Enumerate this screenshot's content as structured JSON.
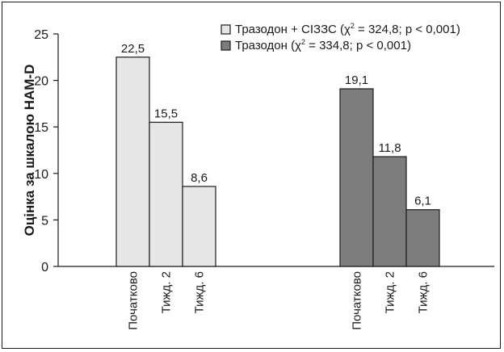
{
  "chart_data": {
    "type": "bar",
    "ylabel": "Оцінка за шкалою НАМ-D",
    "ylim": [
      0,
      25
    ],
    "yticks": [
      0,
      5,
      10,
      15,
      20,
      25
    ],
    "grid": false,
    "legend_position": "top-right",
    "series": [
      {
        "name": "Тразодон + СІЗЗС (χ² = 324,8; p < 0,001)",
        "name_parts": {
          "before": "Тразодон + СІЗЗС (χ",
          "sup": "2",
          "after": " = 324,8; p < 0,001)"
        },
        "color": "#e6e6e6",
        "categories": [
          "Початково",
          "Тижд. 2",
          "Тижд. 6"
        ],
        "values": [
          22.5,
          15.5,
          8.6
        ],
        "labels": [
          "22,5",
          "15,5",
          "8,6"
        ]
      },
      {
        "name": "Тразодон (χ² = 334,8; p < 0,001)",
        "name_parts": {
          "before": "Тразодон (χ",
          "sup": "2",
          "after": " = 334,8; p < 0,001)"
        },
        "color": "#7d7d7d",
        "categories": [
          "Початково",
          "Тижд. 2",
          "Тижд. 6"
        ],
        "values": [
          19.1,
          11.8,
          6.1
        ],
        "labels": [
          "19,1",
          "11,8",
          "6,1"
        ]
      }
    ]
  }
}
